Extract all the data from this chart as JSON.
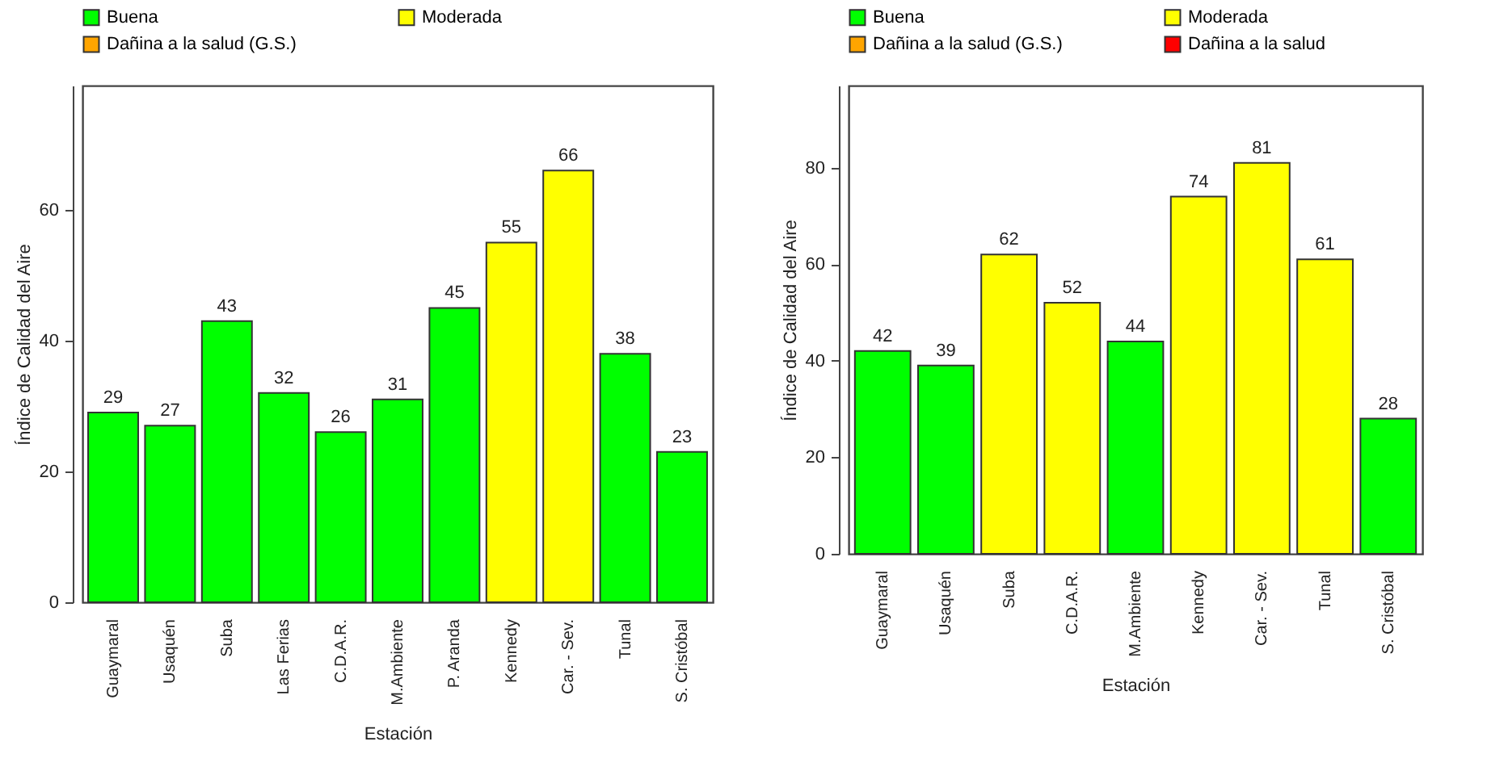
{
  "chart_data": [
    {
      "type": "bar",
      "xlabel": "Estación",
      "ylabel": "Índice de Calidad del Aire",
      "legend": "top",
      "data_labels": true,
      "grid": false,
      "categories": [
        "Guaymaral",
        "Usaquén",
        "Suba",
        "Las Ferias",
        "C.D.A.R.",
        "M.Ambiente",
        "P. Aranda",
        "Kennedy",
        "Car. - Sev.",
        "Tunal",
        "S. Cristóbal"
      ],
      "ylim": [
        0,
        79
      ],
      "yticks": [
        0,
        20,
        40,
        60
      ],
      "series": [
        {
          "name": "Buena",
          "color": "#00ff00",
          "values": [
            29,
            27,
            43,
            32,
            26,
            31,
            45,
            null,
            null,
            38,
            23
          ]
        },
        {
          "name": "Moderada",
          "color": "#ffff00",
          "values": [
            null,
            null,
            null,
            null,
            null,
            null,
            null,
            55,
            66,
            null,
            null
          ]
        },
        {
          "name": "Dañina a la salud (G.S.)",
          "color": "#ffa500",
          "values": [
            null,
            null,
            null,
            null,
            null,
            null,
            null,
            null,
            null,
            null,
            null
          ]
        }
      ]
    },
    {
      "type": "bar",
      "xlabel": "Estación",
      "ylabel": "Índice de Calidad del Aire",
      "legend": "top",
      "data_labels": true,
      "grid": false,
      "categories": [
        "Guaymaral",
        "Usaquén",
        "Suba",
        "C.D.A.R.",
        "M.Ambiente",
        "Kennedy",
        "Car. - Sev.",
        "Tunal",
        "S. Cristóbal"
      ],
      "ylim": [
        0,
        97
      ],
      "yticks": [
        0,
        20,
        40,
        60,
        80
      ],
      "series": [
        {
          "name": "Buena",
          "color": "#00ff00",
          "values": [
            42,
            39,
            null,
            null,
            44,
            null,
            null,
            null,
            28
          ]
        },
        {
          "name": "Moderada",
          "color": "#ffff00",
          "values": [
            null,
            null,
            62,
            52,
            null,
            74,
            81,
            61,
            null
          ]
        },
        {
          "name": "Dañina a la salud (G.S.)",
          "color": "#ffa500",
          "values": [
            null,
            null,
            null,
            null,
            null,
            null,
            null,
            null,
            null
          ]
        },
        {
          "name": "Dañina a la salud",
          "color": "#ff0000",
          "values": [
            null,
            null,
            null,
            null,
            null,
            null,
            null,
            null,
            null
          ]
        }
      ]
    }
  ]
}
